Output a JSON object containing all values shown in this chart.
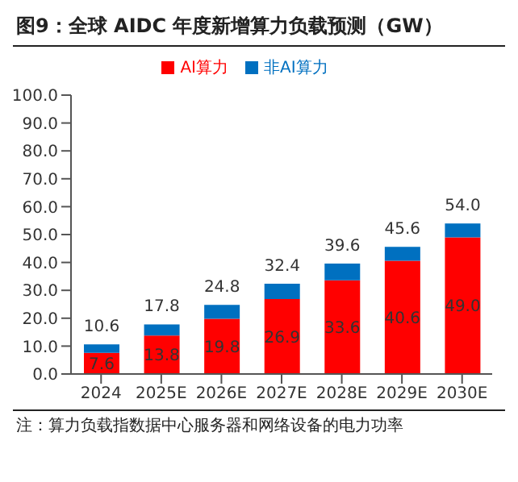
{
  "chart_data": {
    "type": "bar",
    "title": "图9：全球 AIDC 年度新增算力负载预测（GW）",
    "categories": [
      "2024",
      "2025E",
      "2026E",
      "2027E",
      "2028E",
      "2029E",
      "2030E"
    ],
    "stacked": true,
    "series": [
      {
        "name": "AI算力",
        "color": "#ff0000",
        "values": [
          7.6,
          13.8,
          19.8,
          26.9,
          33.6,
          40.6,
          49.0
        ],
        "value_labels": [
          "7.6",
          "13.8",
          "19.8",
          "26.9",
          "33.6",
          "40.6",
          "49.0"
        ]
      },
      {
        "name": "非AI算力",
        "color": "#0070c0",
        "values": [
          3.0,
          4.0,
          5.0,
          5.5,
          6.0,
          5.0,
          5.0
        ]
      }
    ],
    "totals": [
      "10.6",
      "17.8",
      "24.8",
      "32.4",
      "39.6",
      "45.6",
      "54.0"
    ],
    "ylim": [
      0,
      100
    ],
    "yticks": [
      {
        "value": 0,
        "label": "0.0"
      },
      {
        "value": 10,
        "label": "10.0"
      },
      {
        "value": 20,
        "label": "20.0"
      },
      {
        "value": 30,
        "label": "30.0"
      },
      {
        "value": 40,
        "label": "40.0"
      },
      {
        "value": 50,
        "label": "50.0"
      },
      {
        "value": 60,
        "label": "60.0"
      },
      {
        "value": 70,
        "label": "70.0"
      },
      {
        "value": 80,
        "label": "80.0"
      },
      {
        "value": 90,
        "label": "90.0"
      },
      {
        "value": 100,
        "label": "100.0"
      }
    ],
    "grid": false,
    "legend": "top",
    "annotations": [
      "注：算力负载指数据中心服务器和网络设备的电力功率"
    ]
  }
}
